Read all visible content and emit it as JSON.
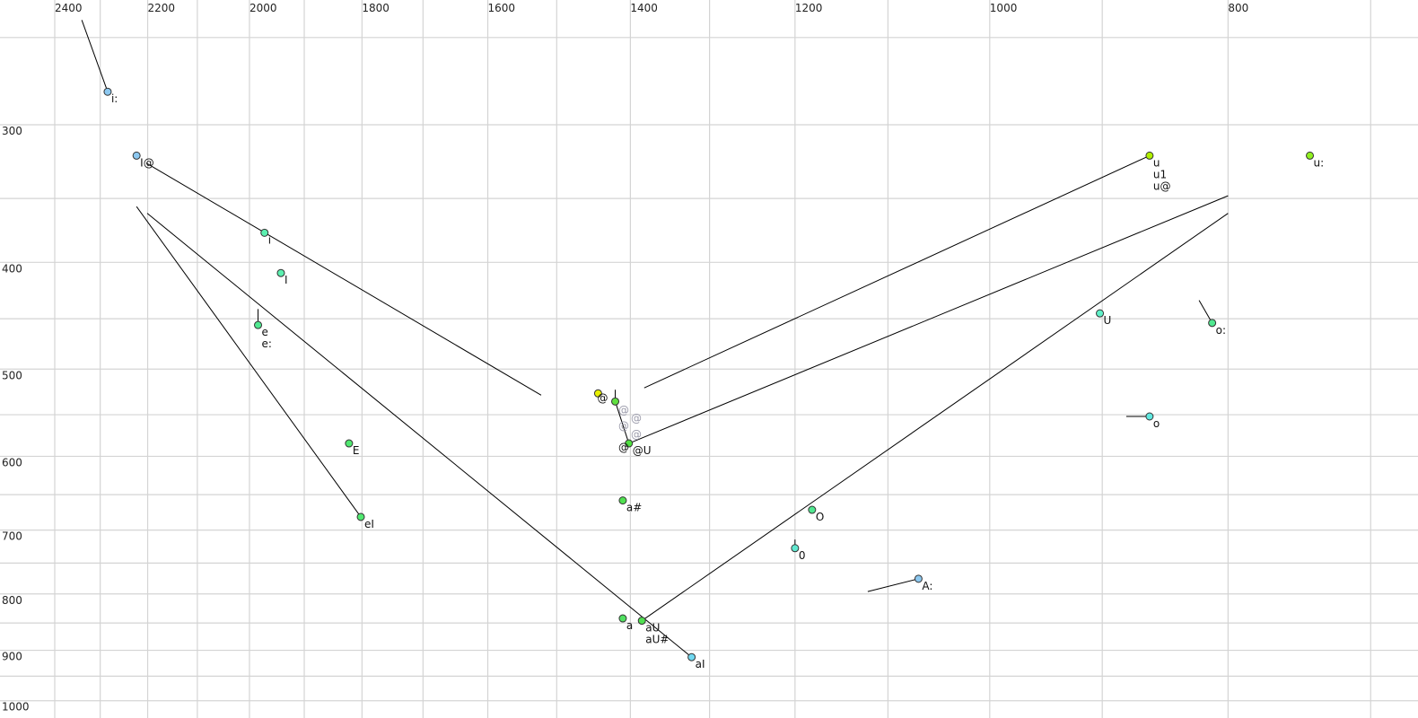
{
  "chart_data": {
    "type": "scatter",
    "title": "",
    "xlabel": "",
    "ylabel": "",
    "x_scale": "log",
    "y_scale": "log",
    "x_reversed": true,
    "x_axis_position": "top",
    "xlim": [
      2400,
      700
    ],
    "ylim": [
      250,
      1000
    ],
    "grid": true,
    "x_gridlines": [
      2400,
      2300,
      2200,
      2100,
      2000,
      1900,
      1800,
      1700,
      1600,
      1500,
      1400,
      1300,
      1200,
      1100,
      1000,
      900,
      800,
      700
    ],
    "y_gridlines": [
      250,
      300,
      350,
      400,
      450,
      500,
      550,
      600,
      650,
      700,
      750,
      800,
      850,
      900,
      950,
      1000
    ],
    "x_ticks": [
      {
        "v": 2400,
        "label": "2400"
      },
      {
        "v": 2200,
        "label": "2200"
      },
      {
        "v": 2000,
        "label": "2000"
      },
      {
        "v": 1800,
        "label": "1800"
      },
      {
        "v": 1600,
        "label": "1600"
      },
      {
        "v": 1400,
        "label": "1400"
      },
      {
        "v": 1200,
        "label": "1200"
      },
      {
        "v": 1000,
        "label": "1000"
      },
      {
        "v": 800,
        "label": "800"
      }
    ],
    "y_ticks": [
      {
        "v": 300,
        "label": "300"
      },
      {
        "v": 400,
        "label": "400"
      },
      {
        "v": 500,
        "label": "500"
      },
      {
        "v": 600,
        "label": "600"
      },
      {
        "v": 700,
        "label": "700"
      },
      {
        "v": 800,
        "label": "800"
      },
      {
        "v": 900,
        "label": "900"
      },
      {
        "v": 1000,
        "label": "1000"
      }
    ],
    "points": [
      {
        "f2": 2284,
        "f1": 280,
        "labels": [
          "i:"
        ],
        "color": "#8cc8f0"
      },
      {
        "f2": 2223,
        "f1": 320,
        "labels": [
          "I@"
        ],
        "color": "#8cc8f0"
      },
      {
        "f2": 1972,
        "f1": 376,
        "labels": [
          "i"
        ],
        "color": "#5cf0b0"
      },
      {
        "f2": 1942,
        "f1": 409,
        "labels": [
          "I"
        ],
        "color": "#5cf0b0"
      },
      {
        "f2": 1984,
        "f1": 456,
        "labels": [
          "e",
          "e:"
        ],
        "color": "#50e890"
      },
      {
        "f2": 1822,
        "f1": 584,
        "labels": [
          "E"
        ],
        "color": "#50e870"
      },
      {
        "f2": 1802,
        "f1": 681,
        "labels": [
          "eI"
        ],
        "color": "#50e870"
      },
      {
        "f2": 1443,
        "f1": 526,
        "labels": [],
        "color": "#e8f000"
      },
      {
        "f2": 1420,
        "f1": 535,
        "labels": [],
        "color": "#60e040"
      },
      {
        "f2": 1402,
        "f1": 584,
        "labels": [
          "@U"
        ],
        "color": "#50e040"
      },
      {
        "f2": 1410,
        "f1": 658,
        "labels": [
          "a#"
        ],
        "color": "#50e050"
      },
      {
        "f2": 1410,
        "f1": 842,
        "labels": [
          "a"
        ],
        "color": "#50e060"
      },
      {
        "f2": 1385,
        "f1": 846,
        "labels": [
          "aU",
          "aU#"
        ],
        "color": "#50e050"
      },
      {
        "f2": 1322,
        "f1": 913,
        "labels": [
          "aI"
        ],
        "color": "#70d8f0"
      },
      {
        "f2": 1181,
        "f1": 671,
        "labels": [
          "O"
        ],
        "color": "#50e890"
      },
      {
        "f2": 1200,
        "f1": 727,
        "labels": [
          "0"
        ],
        "color": "#60e8d0"
      },
      {
        "f2": 1069,
        "f1": 775,
        "labels": [
          "A:"
        ],
        "color": "#8cc8f0"
      },
      {
        "f2": 902,
        "f1": 445,
        "labels": [
          "U"
        ],
        "color": "#60f0c8"
      },
      {
        "f2": 861,
        "f1": 320,
        "labels": [
          "u",
          "u1",
          "u@"
        ],
        "color": "#b0f000"
      },
      {
        "f2": 812,
        "f1": 454,
        "labels": [
          "o:"
        ],
        "color": "#50e890"
      },
      {
        "f2": 861,
        "f1": 552,
        "labels": [
          "o"
        ],
        "color": "#60e8e0"
      },
      {
        "f2": 741,
        "f1": 320,
        "labels": [
          "u:"
        ],
        "color": "#90f020"
      }
    ],
    "extra_labels": [
      {
        "f2": 1432,
        "f1": 530,
        "text": "@",
        "gray": false
      },
      {
        "f2": 1404,
        "f1": 588,
        "text": "@",
        "gray": false
      },
      {
        "f2": 1404,
        "f1": 544,
        "text": "@",
        "gray": true
      },
      {
        "f2": 1404,
        "f1": 553,
        "text": "@",
        "gray": true
      },
      {
        "f2": 1404,
        "f1": 562,
        "text": "@",
        "gray": true
      },
      {
        "f2": 1404,
        "f1": 572,
        "text": "@",
        "gray": true
      }
    ],
    "segments": [
      {
        "from": [
          2340,
          241
        ],
        "to": [
          2284,
          280
        ]
      },
      {
        "from": [
          2203,
          325
        ],
        "to": [
          1522,
          528
        ]
      },
      {
        "from": [
          2223,
          356
        ],
        "to": [
          1802,
          681
        ]
      },
      {
        "from": [
          2201,
          361
        ],
        "to": [
          1322,
          913
        ]
      },
      {
        "from": [
          1385,
          846
        ],
        "to": [
          800,
          361
        ]
      },
      {
        "from": [
          1402,
          584
        ],
        "to": [
          800,
          348
        ]
      },
      {
        "from": [
          1382,
          520
        ],
        "to": [
          861,
          320
        ]
      },
      {
        "from": [
          1984,
          441
        ],
        "to": [
          1984,
          456
        ]
      },
      {
        "from": [
          822,
          433
        ],
        "to": [
          812,
          454
        ]
      },
      {
        "from": [
          880,
          552
        ],
        "to": [
          861,
          552
        ]
      },
      {
        "from": [
          1200,
          714
        ],
        "to": [
          1200,
          727
        ]
      },
      {
        "from": [
          1121,
          796
        ],
        "to": [
          1069,
          775
        ]
      },
      {
        "from": [
          1420,
          522
        ],
        "to": [
          1420,
          535
        ]
      },
      {
        "from": [
          1420,
          535
        ],
        "to": [
          1402,
          584
        ]
      }
    ]
  }
}
